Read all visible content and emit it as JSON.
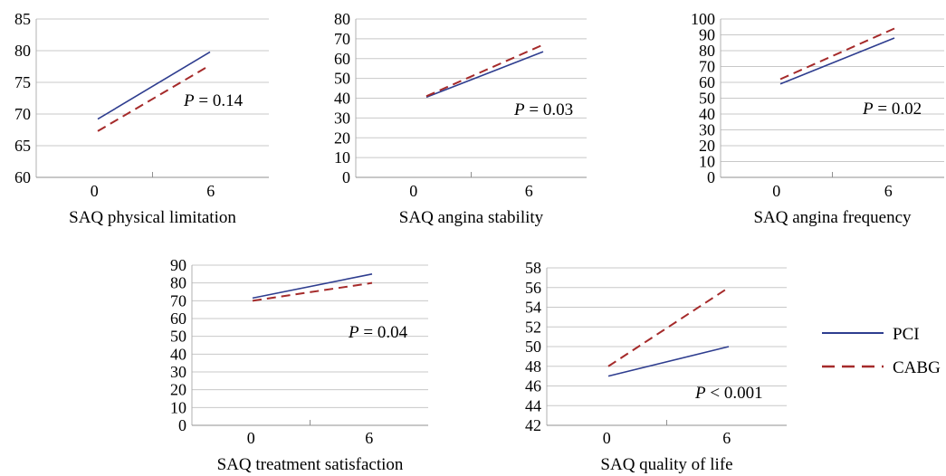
{
  "legend": {
    "placement": "right",
    "entries": [
      {
        "name": "PCI",
        "color": "#2E3D8F",
        "dash": "solid"
      },
      {
        "name": "CABG",
        "color": "#A52A2A",
        "dash": "dashed"
      }
    ]
  },
  "chart_data": [
    {
      "type": "line",
      "xlabel": "SAQ physical limitation",
      "categories": [
        "0",
        "6"
      ],
      "ylim": [
        60,
        85
      ],
      "yticks": [
        "60",
        "65",
        "70",
        "75",
        "80",
        "85"
      ],
      "grid": true,
      "series": [
        {
          "name": "PCI",
          "values": [
            69.2,
            79.8
          ]
        },
        {
          "name": "CABG",
          "values": [
            67.3,
            77.7
          ]
        }
      ],
      "annotation": {
        "italic": "P",
        "rest": " = 0.14"
      }
    },
    {
      "type": "line",
      "xlabel": "SAQ angina stability",
      "categories": [
        "0",
        "6"
      ],
      "ylim": [
        0,
        80
      ],
      "yticks": [
        "0",
        "10",
        "20",
        "30",
        "40",
        "50",
        "60",
        "70",
        "80"
      ],
      "grid": true,
      "series": [
        {
          "name": "PCI",
          "values": [
            40.5,
            63.5
          ]
        },
        {
          "name": "CABG",
          "values": [
            41,
            67
          ]
        }
      ],
      "annotation": {
        "italic": "P",
        "rest": " = 0.03"
      }
    },
    {
      "type": "line",
      "xlabel": "SAQ angina frequency",
      "categories": [
        "0",
        "6"
      ],
      "ylim": [
        0,
        100
      ],
      "yticks": [
        "0",
        "10",
        "20",
        "30",
        "40",
        "50",
        "60",
        "70",
        "80",
        "90",
        "100"
      ],
      "grid": true,
      "series": [
        {
          "name": "PCI",
          "values": [
            59,
            88
          ]
        },
        {
          "name": "CABG",
          "values": [
            62,
            94
          ]
        }
      ],
      "annotation": {
        "italic": "P",
        "rest": " = 0.02"
      }
    },
    {
      "type": "line",
      "xlabel": "SAQ treatment satisfaction",
      "categories": [
        "0",
        "6"
      ],
      "ylim": [
        0,
        90
      ],
      "yticks": [
        "0",
        "10",
        "20",
        "30",
        "40",
        "50",
        "60",
        "70",
        "80",
        "90"
      ],
      "grid": true,
      "series": [
        {
          "name": "PCI",
          "values": [
            71.5,
            85
          ]
        },
        {
          "name": "CABG",
          "values": [
            70,
            80
          ]
        }
      ],
      "annotation": {
        "italic": "P",
        "rest": " = 0.04"
      }
    },
    {
      "type": "line",
      "xlabel": "SAQ quality of life",
      "categories": [
        "0",
        "6"
      ],
      "ylim": [
        42,
        58
      ],
      "yticks": [
        "42",
        "44",
        "46",
        "48",
        "50",
        "52",
        "54",
        "56",
        "58"
      ],
      "grid": true,
      "series": [
        {
          "name": "PCI",
          "values": [
            47,
            50
          ]
        },
        {
          "name": "CABG",
          "values": [
            48,
            56
          ]
        }
      ],
      "annotation": {
        "italic": "P",
        "rest": " < 0.001"
      }
    }
  ]
}
